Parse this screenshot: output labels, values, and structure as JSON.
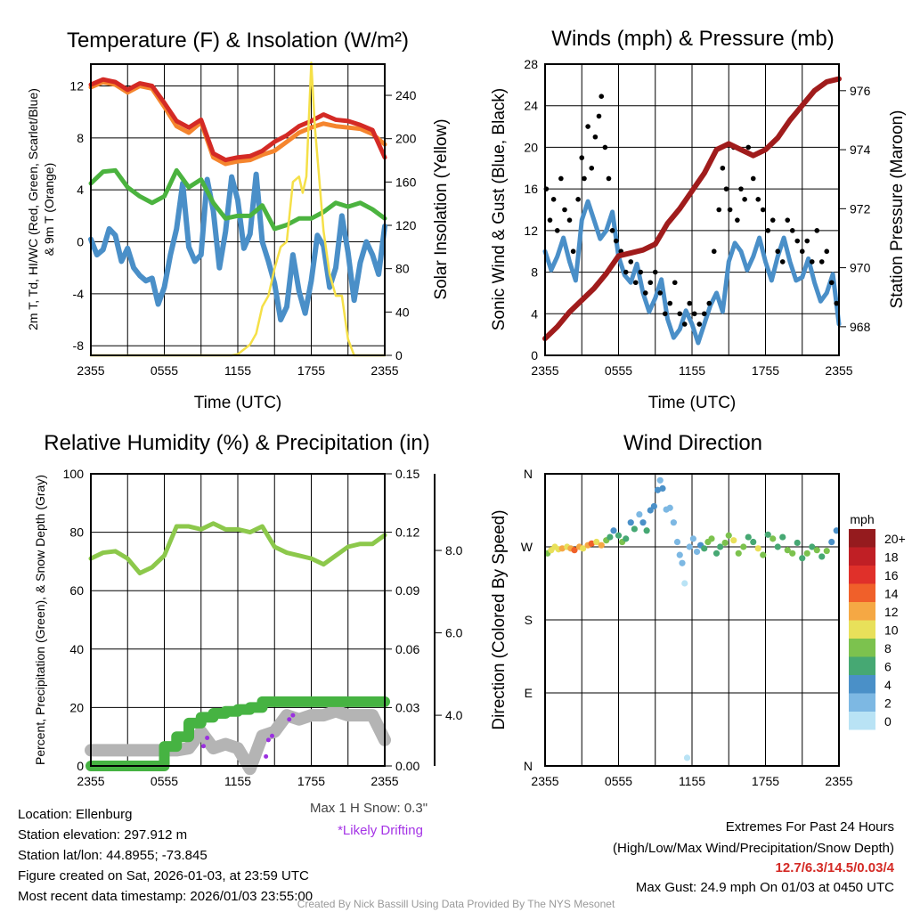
{
  "chart_data": [
    {
      "type": "line",
      "title": "Temperature (F) & Insolation (W/m²)",
      "xlabel": "Time (UTC)",
      "ylabel_line1": "2m T, Td, HI/WC (Red, Green, Scarlet/Blue)",
      "ylabel_line2": "& 9m T (Orange)",
      "ylabel_right": "Solar Insolation (Yellow)",
      "x_ticks": [
        "2355",
        "0555",
        "1155",
        "1755",
        "2355"
      ],
      "y_ticks": [
        -8,
        -4,
        0,
        4,
        8,
        12
      ],
      "y2_ticks": [
        0,
        40,
        80,
        120,
        160,
        200,
        240
      ],
      "hours": [
        0,
        1,
        2,
        3,
        4,
        5,
        6,
        7,
        8,
        9,
        10,
        11,
        12,
        13,
        14,
        15,
        16,
        17,
        18,
        19,
        20,
        21,
        22,
        23,
        24
      ],
      "series": [
        {
          "name": "2m Temperature",
          "color": "#d42a25",
          "values": [
            12.1,
            12.5,
            12.3,
            11.7,
            12.2,
            12.0,
            10.7,
            9.3,
            8.8,
            9.4,
            6.8,
            6.3,
            6.5,
            6.6,
            7.0,
            7.7,
            8.2,
            8.9,
            9.3,
            9.8,
            9.4,
            9.3,
            9.0,
            8.6,
            6.5
          ]
        },
        {
          "name": "9m Temperature",
          "color": "#f5852e",
          "values": [
            11.9,
            12.3,
            12.1,
            11.5,
            12.0,
            11.8,
            10.4,
            8.9,
            8.4,
            9.2,
            6.5,
            6.0,
            6.2,
            6.3,
            6.7,
            7.0,
            7.7,
            8.4,
            8.8,
            9.1,
            8.9,
            8.8,
            8.7,
            8.3,
            7.5
          ]
        },
        {
          "name": "Dew Point",
          "color": "#4bb33f",
          "values": [
            4.5,
            5.4,
            5.5,
            4.2,
            3.5,
            3.0,
            3.5,
            5.5,
            4.2,
            4.8,
            3.0,
            1.8,
            2.0,
            2.0,
            2.8,
            1.0,
            1.3,
            1.8,
            1.8,
            2.3,
            3.0,
            2.7,
            3.0,
            2.5,
            1.8
          ]
        },
        {
          "name": "Wind Chill",
          "color": "#4a8fc8",
          "values": [
            0.2,
            -0.6,
            0.5,
            -0.5,
            -2.6,
            -2.8,
            -3.5,
            1.0,
            -0.4,
            -1.0,
            2.4,
            0.8,
            3.2,
            0.6,
            0,
            -3.2,
            -5.0,
            -3.8,
            -3.0,
            -0.3,
            -2.0,
            -0.8,
            -1.6,
            -1.0,
            1.2
          ]
        }
      ],
      "wind_chill_detail_hours": [
        0.5,
        1.5,
        2.5,
        3.5,
        4.5,
        5.5,
        6.5,
        7.5,
        8.5,
        9.5,
        10.5,
        11.5,
        12.5,
        13.5,
        14.5,
        15.5,
        16.5,
        17.5,
        18.5,
        19.5,
        20.5,
        21.5,
        22.5,
        23.5
      ],
      "wind_chill_detail": [
        -1.0,
        1.0,
        -1.5,
        -2.0,
        -3.0,
        -4.8,
        -1.0,
        4.5,
        -1.5,
        4.8,
        -2.0,
        5.0,
        -0.5,
        5.2,
        -1.5,
        -6.0,
        -1.0,
        -5.5,
        0.5,
        -3.5,
        2.0,
        -4.5,
        0.0,
        -2.5
      ],
      "solar": {
        "color": "#f5e048",
        "hours": [
          0,
          11.5,
          12,
          13,
          13.5,
          14,
          14.5,
          15,
          15.5,
          16,
          16.5,
          17,
          17.3,
          17.6,
          18,
          18.3,
          18.6,
          19,
          19.5,
          20,
          20.5,
          21,
          21.5,
          24
        ],
        "values": [
          0,
          0,
          1,
          10,
          20,
          45,
          55,
          80,
          100,
          105,
          160,
          165,
          150,
          165,
          270,
          210,
          170,
          115,
          75,
          55,
          55,
          15,
          0,
          0
        ]
      }
    },
    {
      "type": "line",
      "title": "Winds (mph) & Pressure (mb)",
      "xlabel": "Time (UTC)",
      "ylabel": "Sonic Wind & Gust (Blue, Black)",
      "ylabel_right": "Station Pressure (Maroon)",
      "x_ticks": [
        "2355",
        "0555",
        "1155",
        "1755",
        "2355"
      ],
      "y_ticks": [
        0,
        4,
        8,
        12,
        16,
        20,
        24,
        28
      ],
      "y2_ticks": [
        968,
        970,
        972,
        974,
        976
      ],
      "hours": [
        0,
        1,
        2,
        3,
        4,
        5,
        6,
        7,
        8,
        9,
        10,
        11,
        12,
        13,
        14,
        15,
        16,
        17,
        18,
        19,
        20,
        21,
        22,
        23,
        24
      ],
      "series": [
        {
          "name": "Sonic Wind",
          "color": "#4a8fc8",
          "values": [
            10,
            9.5,
            9,
            13,
            13,
            12,
            9.5,
            7,
            6,
            5.5,
            3.5,
            2.5,
            3,
            3,
            6,
            9,
            10,
            9.5,
            9,
            9.5,
            9,
            7.5,
            7,
            6,
            3
          ]
        },
        {
          "name": "Station Pressure",
          "color": "#a01c1c",
          "values": [
            967.6,
            968.0,
            968.5,
            968.9,
            969.3,
            969.8,
            970.4,
            970.5,
            970.6,
            970.8,
            971.5,
            972.0,
            972.6,
            973.2,
            974.0,
            974.2,
            974.0,
            973.8,
            974.0,
            974.4,
            975.0,
            975.5,
            976.0,
            976.3,
            976.4
          ]
        }
      ],
      "gust_color": "#000000",
      "gust_hours": [
        0.1,
        0.4,
        0.7,
        1.0,
        1.3,
        1.6,
        2.0,
        2.3,
        2.7,
        3.0,
        3.2,
        3.5,
        3.8,
        4.1,
        4.4,
        4.6,
        4.9,
        5.2,
        5.5,
        5.8,
        6.2,
        6.6,
        7.0,
        7.4,
        7.8,
        8.2,
        8.6,
        9.0,
        9.4,
        9.8,
        10.2,
        10.6,
        11.0,
        11.4,
        11.8,
        12.2,
        12.6,
        13.0,
        13.4,
        13.8,
        14.2,
        14.5,
        14.8,
        15.1,
        15.4,
        15.7,
        16.0,
        16.3,
        16.6,
        17.0,
        17.4,
        17.8,
        18.2,
        18.6,
        19.0,
        19.4,
        19.8,
        20.2,
        20.6,
        21.0,
        21.4,
        21.8,
        22.2,
        22.6,
        23.0,
        23.4,
        23.8
      ],
      "gust_values": [
        16,
        13,
        15,
        12,
        17,
        14,
        13,
        10,
        15,
        19,
        17,
        22,
        18,
        21,
        23,
        24.9,
        20,
        17,
        12,
        11,
        10,
        8,
        9,
        7,
        8,
        6,
        7,
        8,
        6,
        4,
        5,
        7,
        4,
        3,
        5,
        4,
        3,
        4,
        5,
        10,
        14,
        18,
        16,
        14,
        20,
        13,
        16,
        15,
        20,
        17,
        15,
        14,
        12,
        13,
        10,
        9,
        13,
        12,
        11,
        10,
        11,
        9,
        12,
        9,
        10,
        7,
        5
      ]
    },
    {
      "type": "line",
      "title": "Relative Humidity (%) & Precipitation (in)",
      "ylabel": "Percent, Precipitation (Green), & Snow Depth (Gray)",
      "x_ticks": [
        "2355",
        "0555",
        "1155",
        "1755",
        "2355"
      ],
      "y_ticks": [
        0,
        20,
        40,
        60,
        80,
        100
      ],
      "y2_ticks": [
        "0.00",
        "0.03",
        "0.06",
        "0.09",
        "0.12",
        "0.15"
      ],
      "y3_ticks": [
        "4.0",
        "6.0",
        "8.0"
      ],
      "hours": [
        0,
        1,
        2,
        3,
        4,
        5,
        6,
        7,
        8,
        9,
        10,
        11,
        12,
        13,
        14,
        15,
        16,
        17,
        18,
        19,
        20,
        21,
        22,
        23,
        24
      ],
      "series": [
        {
          "name": "Relative Humidity",
          "color": "#8cc84b",
          "values": [
            71,
            73,
            73.5,
            71,
            66,
            68,
            72,
            82,
            82,
            81,
            83,
            81,
            81,
            80,
            82,
            75,
            73,
            72,
            71,
            69,
            72,
            75,
            76,
            76,
            79
          ]
        },
        {
          "name": "Precipitation",
          "color": "#46b342",
          "values": [
            0,
            0,
            0,
            0,
            0,
            0,
            0.01,
            0.015,
            0.022,
            0.025,
            0.027,
            0.028,
            0.029,
            0.03,
            0.033,
            0.033,
            0.033,
            0.033,
            0.033,
            0.033,
            0.033,
            0.033,
            0.033,
            0.033,
            0.033
          ]
        },
        {
          "name": "Snow Depth",
          "color": "#b4b4b4",
          "values": [
            3.15,
            3.15,
            3.15,
            3.15,
            3.15,
            3.15,
            3.15,
            3.15,
            3.2,
            3.6,
            3.2,
            3.3,
            3.2,
            2.7,
            3.5,
            3.6,
            4.0,
            3.9,
            4.0,
            4.0,
            4.1,
            4.0,
            4.0,
            4.0,
            3.4
          ]
        }
      ],
      "drifting": {
        "color": "#9b30e0",
        "hours": [
          9.2,
          9.5,
          14.3,
          14.5,
          14.8,
          16.2,
          16.5
        ],
        "values": [
          3.25,
          3.45,
          3.0,
          3.4,
          3.5,
          3.9,
          4.0
        ]
      },
      "max_snow_text": "Max 1 H Snow: 0.3\"",
      "drifting_text": "*Likely Drifting"
    },
    {
      "type": "scatter",
      "title": "Wind Direction",
      "ylabel": "Direction (Colored By Speed)",
      "x_ticks": [
        "2355",
        "0555",
        "1155",
        "1755",
        "2355"
      ],
      "y_ticks": [
        "N",
        "E",
        "S",
        "W",
        "N"
      ],
      "colorbar_title": "mph",
      "colorbar_labels": [
        "20+",
        "18",
        "16",
        "14",
        "12",
        "10",
        "8",
        "6",
        "4",
        "2",
        "0"
      ],
      "colorbar_colors": [
        "#951b1e",
        "#c01f25",
        "#e0302a",
        "#f0602a",
        "#f5a844",
        "#e8e05a",
        "#7cc24e",
        "#46a873",
        "#4a90c8",
        "#7db8e3",
        "#b9e3f5"
      ],
      "points": [
        [
          0.2,
          262,
          9
        ],
        [
          0.5,
          266,
          10
        ],
        [
          0.8,
          270,
          11
        ],
        [
          1.1,
          267,
          10
        ],
        [
          1.4,
          268,
          12
        ],
        [
          1.8,
          270,
          11
        ],
        [
          2.1,
          268,
          13
        ],
        [
          2.4,
          266,
          14
        ],
        [
          2.8,
          270,
          12
        ],
        [
          3.1,
          268,
          10
        ],
        [
          3.5,
          272,
          13
        ],
        [
          3.8,
          274,
          14
        ],
        [
          4.2,
          276,
          11
        ],
        [
          4.6,
          272,
          12
        ],
        [
          5.0,
          278,
          9
        ],
        [
          5.3,
          282,
          7
        ],
        [
          5.6,
          290,
          5
        ],
        [
          6.0,
          284,
          6
        ],
        [
          6.3,
          276,
          8
        ],
        [
          6.6,
          280,
          7
        ],
        [
          7.0,
          300,
          4
        ],
        [
          7.3,
          292,
          6
        ],
        [
          7.7,
          310,
          3
        ],
        [
          8.0,
          300,
          4
        ],
        [
          8.3,
          290,
          6
        ],
        [
          8.6,
          315,
          5
        ],
        [
          8.9,
          320,
          4
        ],
        [
          9.2,
          340,
          4
        ],
        [
          9.4,
          352,
          3
        ],
        [
          9.6,
          342,
          4
        ],
        [
          9.9,
          316,
          3
        ],
        [
          10.2,
          318,
          2
        ],
        [
          10.5,
          300,
          2
        ],
        [
          10.8,
          276,
          2
        ],
        [
          11.0,
          260,
          2
        ],
        [
          11.2,
          250,
          3
        ],
        [
          11.4,
          225,
          1
        ],
        [
          11.6,
          10,
          1
        ],
        [
          11.8,
          270,
          2
        ],
        [
          12.1,
          280,
          3
        ],
        [
          12.4,
          264,
          2
        ],
        [
          12.7,
          272,
          4
        ],
        [
          13.0,
          268,
          6
        ],
        [
          13.3,
          276,
          9
        ],
        [
          13.6,
          280,
          8
        ],
        [
          14.0,
          262,
          6
        ],
        [
          14.3,
          270,
          7
        ],
        [
          14.7,
          275,
          9
        ],
        [
          15.0,
          284,
          8
        ],
        [
          15.4,
          278,
          10
        ],
        [
          15.8,
          262,
          8
        ],
        [
          16.2,
          270,
          9
        ],
        [
          16.6,
          282,
          6
        ],
        [
          17.0,
          276,
          7
        ],
        [
          17.4,
          268,
          10
        ],
        [
          17.8,
          260,
          9
        ],
        [
          18.2,
          285,
          6
        ],
        [
          18.6,
          280,
          8
        ],
        [
          19.0,
          270,
          7
        ],
        [
          19.4,
          282,
          6
        ],
        [
          19.8,
          266,
          9
        ],
        [
          20.2,
          262,
          8
        ],
        [
          20.6,
          275,
          7
        ],
        [
          21.0,
          256,
          6
        ],
        [
          21.4,
          262,
          8
        ],
        [
          21.8,
          270,
          7
        ],
        [
          22.2,
          266,
          9
        ],
        [
          22.6,
          258,
          6
        ],
        [
          23.0,
          265,
          8
        ],
        [
          23.4,
          276,
          5
        ],
        [
          23.8,
          290,
          4
        ]
      ]
    }
  ],
  "footer": {
    "location": "Location: Ellenburg",
    "elevation": "Station elevation: 297.912 m",
    "latlon": "Station lat/lon: 44.8955; -73.845",
    "created": "Figure created on Sat, 2026-01-03, at 23:59 UTC",
    "recent": "Most recent data timestamp: 2026/01/03 23:55:00",
    "extremes_title": "Extremes For Past 24 Hours",
    "extremes_fields": "(High/Low/Max Wind/Precipitation/Snow Depth)",
    "extremes_values": "12.7/6.3/14.5/0.03/4",
    "extremes_color": "#d42a25",
    "max_gust": "Max Gust: 24.9 mph On 01/03 at 0450 UTC",
    "credit": "Created By Nick Bassill Using Data Provided By The NYS Mesonet"
  }
}
